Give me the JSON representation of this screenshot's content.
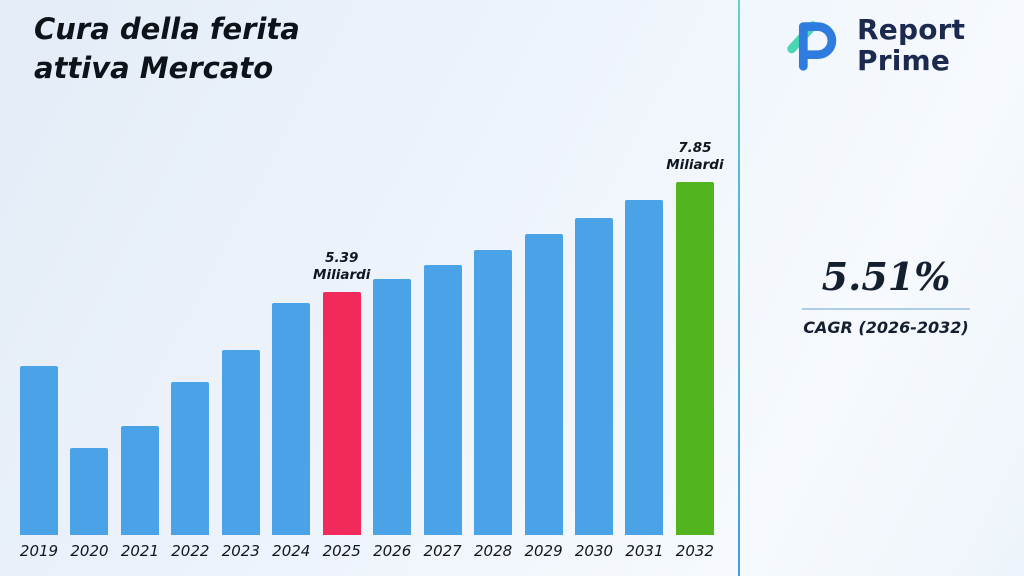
{
  "title": {
    "line1": "Cura della ferita",
    "line2": "attiva Mercato"
  },
  "logo": {
    "line1": "Report",
    "line2": "Prime"
  },
  "cagr": {
    "value": "5.51%",
    "label": "CAGR (2026-2032)"
  },
  "chart_data": {
    "type": "bar",
    "title": "Cura della ferita attiva Mercato",
    "xlabel": "",
    "ylabel": "Miliardi",
    "unit": "Miliardi",
    "ylim": [
      0,
      8.8
    ],
    "grid": false,
    "legend": "none",
    "categories": [
      2019,
      2020,
      2021,
      2022,
      2023,
      2024,
      2025,
      2026,
      2027,
      2028,
      2029,
      2030,
      2031,
      2032
    ],
    "values": [
      3.76,
      1.93,
      2.42,
      3.4,
      4.12,
      5.15,
      5.39,
      5.69,
      6.0,
      6.33,
      6.68,
      7.05,
      7.44,
      7.85
    ],
    "colors": {
      "default": "#49a3e6",
      "highlight_2025": "#f2295b",
      "highlight_2032": "#52b41e",
      "divider_top": "#63d2c3",
      "divider_bottom": "#419fdd"
    },
    "highlights": {
      "2025": {
        "label": "5.39",
        "unit": "Miliardi",
        "color": "#f2295b"
      },
      "2032": {
        "label": "7.85",
        "unit": "Miliardi",
        "color": "#52b41e"
      }
    }
  }
}
